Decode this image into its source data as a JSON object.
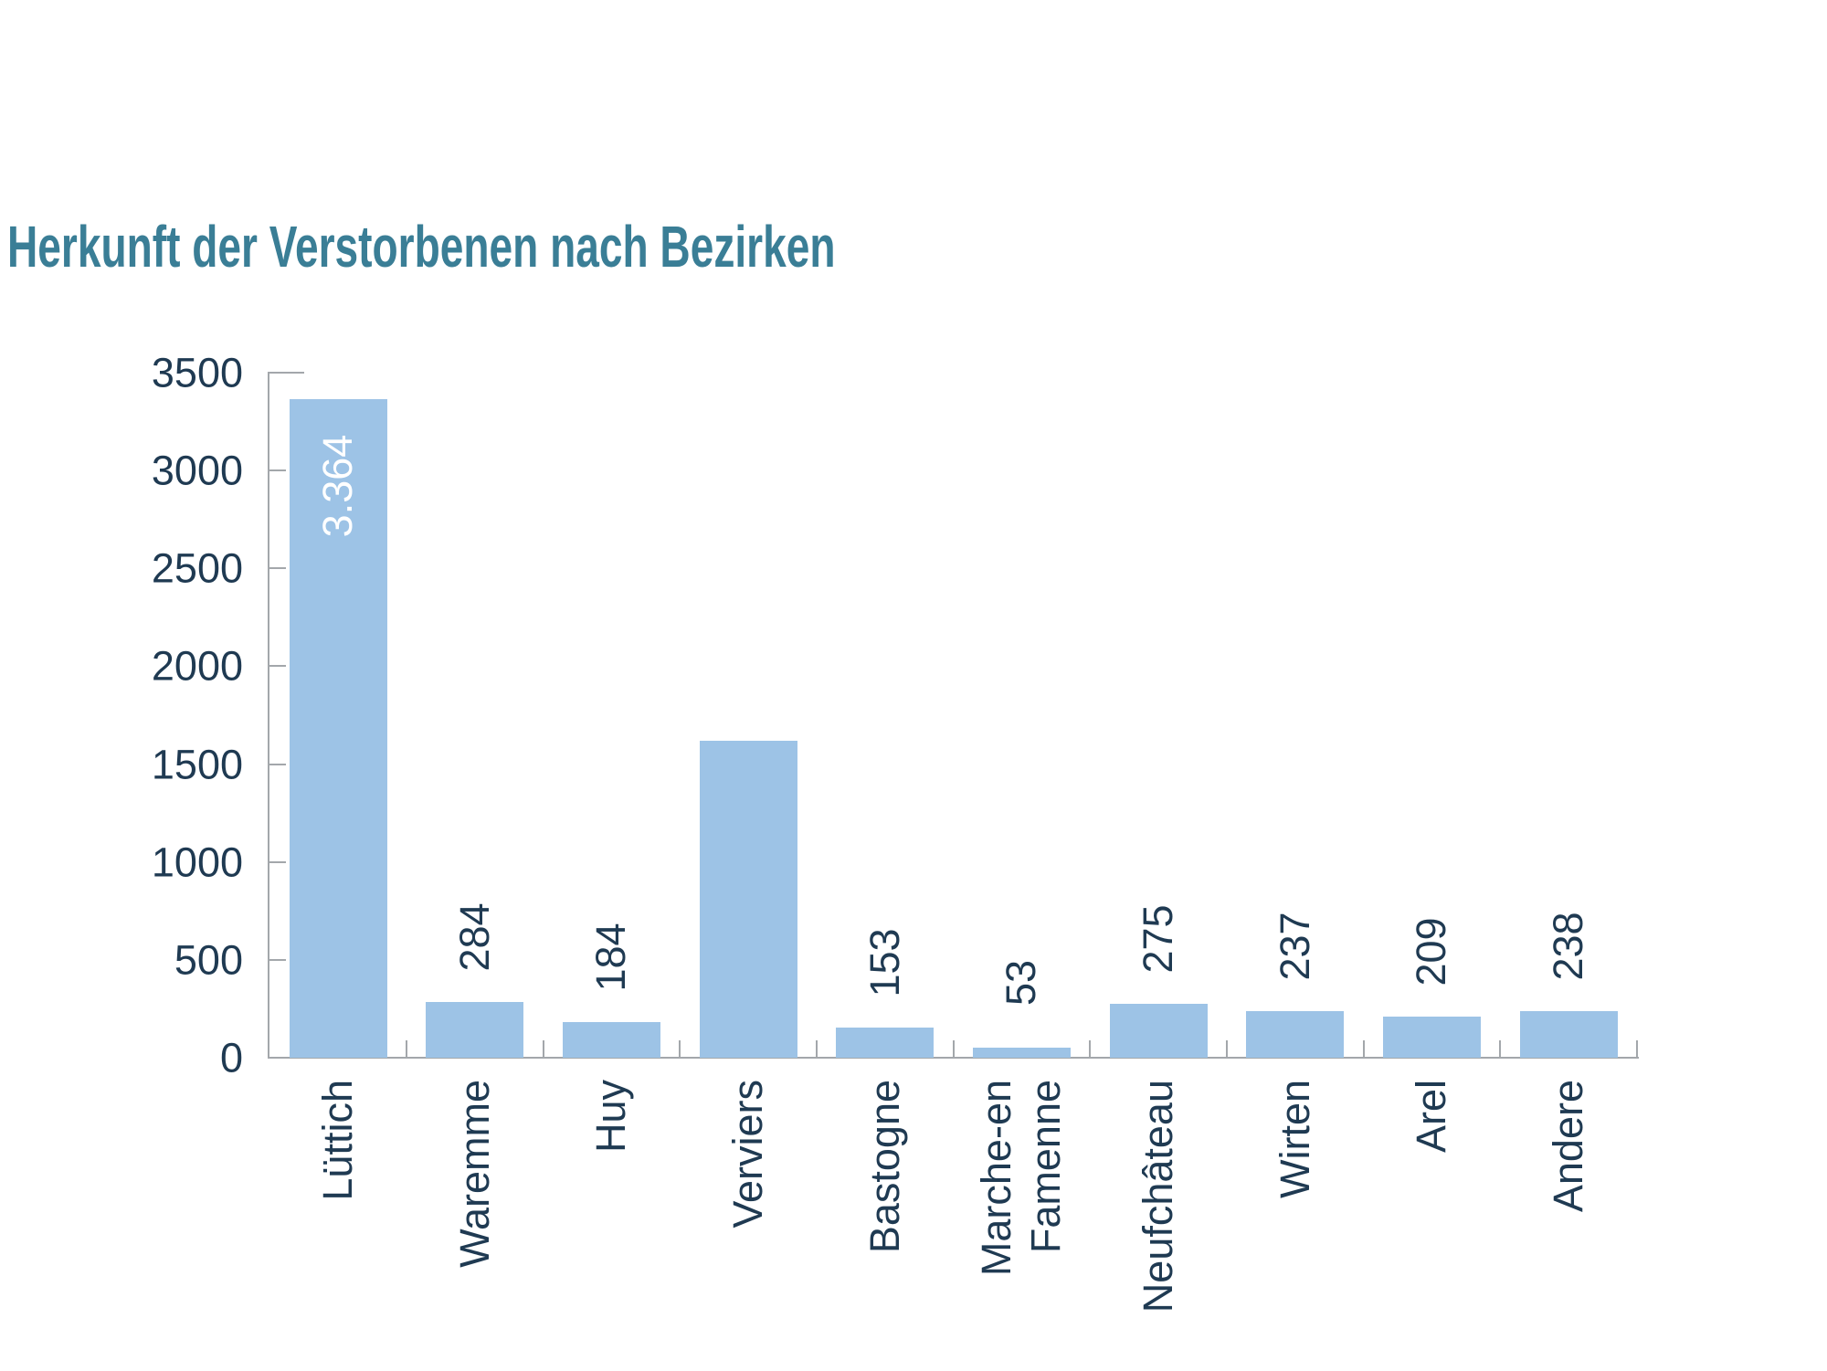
{
  "title": "Herkunft der Verstorbenen nach Bezirken",
  "colors": {
    "title": "#3a7e96",
    "text": "#1f3a52",
    "bar": "#9dc3e6",
    "bar_label_inside": "#ffffff",
    "axis": "#a3a7ab"
  },
  "chart_data": {
    "type": "bar",
    "title": "Herkunft der Verstorbenen nach Bezirken",
    "categories": [
      "Lüttich",
      "Waremme",
      "Huy",
      "Verviers",
      "Bastogne",
      "Marche-en\nFamenne",
      "Neufchâteau",
      "Wirten",
      "Arel",
      "Andere"
    ],
    "values": [
      3364,
      284,
      184,
      1620,
      153,
      53,
      275,
      237,
      209,
      238
    ],
    "bar_labels": [
      "3.364",
      "284",
      "184",
      "",
      "153",
      "53",
      "275",
      "237",
      "209",
      "238"
    ],
    "label_inside": [
      true,
      false,
      false,
      false,
      false,
      false,
      false,
      false,
      false,
      false
    ],
    "y_tick_values": [
      0,
      500,
      1000,
      1500,
      2000,
      2500,
      3000,
      3500
    ],
    "y_tick_labels": [
      "0",
      "500",
      "1000",
      "1500",
      "2000",
      "2500",
      "3000",
      "3500"
    ],
    "xlabel": "",
    "ylabel": "",
    "ylim": [
      0,
      3500
    ],
    "grid": false,
    "legend": "none",
    "x_tick_label_rotation": 90,
    "bar_label_rotation": 90
  }
}
